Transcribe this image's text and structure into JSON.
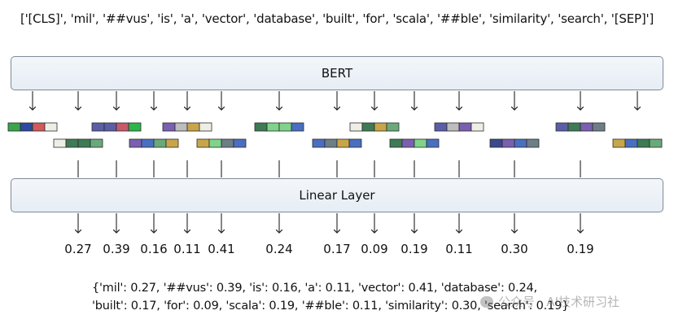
{
  "tokens_text": "['[CLS]', 'mil', '##vus', 'is', 'a', 'vector', 'database', 'built', 'for', 'scala', '##ble', 'similarity', 'search', '[SEP]']",
  "bert_label": "BERT",
  "linear_label": "Linear Layer",
  "scores": [
    "0.27",
    "0.39",
    "0.16",
    "0.11",
    "0.41",
    "0.24",
    "0.17",
    "0.09",
    "0.19",
    "0.11",
    "0.30",
    "0.19"
  ],
  "result_line_1": "{'mil': 0.27, '##vus': 0.39, 'is': 0.16, 'a': 0.11, 'vector': 0.41, 'database': 0.24,",
  "result_line_2": "'built': 0.17, 'for': 0.09, 'scala': 0.19, '##ble': 0.11, 'similarity': 0.30, 'search': 0.19}",
  "watermark": "公众号 · AI技术研习社",
  "embedding_colors": [
    [
      "#3aa54a",
      "#2c4aa0",
      "#d15a5a",
      "#eeeee6"
    ],
    [
      "#eeeee6",
      "#3e7a55",
      "#3e7a55",
      "#6aa97a"
    ],
    [
      "#5b5ea6",
      "#5b5ea6",
      "#c75a6a",
      "#2db54a"
    ],
    [
      "#7a60b0",
      "#4a6fc0",
      "#6aa97a",
      "#c9a54a"
    ],
    [
      "#7a60b0",
      "#bdbdbd",
      "#c9a54a",
      "#eeeee6"
    ],
    [
      "#c9a54a",
      "#7fd38a",
      "#6e7e86",
      "#4a6fc0"
    ],
    [
      "#3e7a55",
      "#7fd38a",
      "#7fd38a",
      "#4a6fc0"
    ],
    [
      "#4a6fc0",
      "#6e7e86",
      "#c9a54a",
      "#4a6fc0"
    ],
    [
      "#eeeee6",
      "#3e7a55",
      "#c9a54a",
      "#6aa97a"
    ],
    [
      "#3e7a55",
      "#7a60b0",
      "#7fd38a",
      "#4a6fc0"
    ],
    [
      "#5b5ea6",
      "#bdbdbd",
      "#7a60b0",
      "#eeeee6"
    ],
    [
      "#3a4a8a",
      "#7a60b0",
      "#4a6fc0",
      "#6e7e86"
    ],
    [
      "#5b5ea6",
      "#3e7a55",
      "#7a60b0",
      "#6e7e86"
    ],
    [
      "#c9a54a",
      "#4a6fc0",
      "#3e7a55",
      "#6aa97a"
    ]
  ]
}
